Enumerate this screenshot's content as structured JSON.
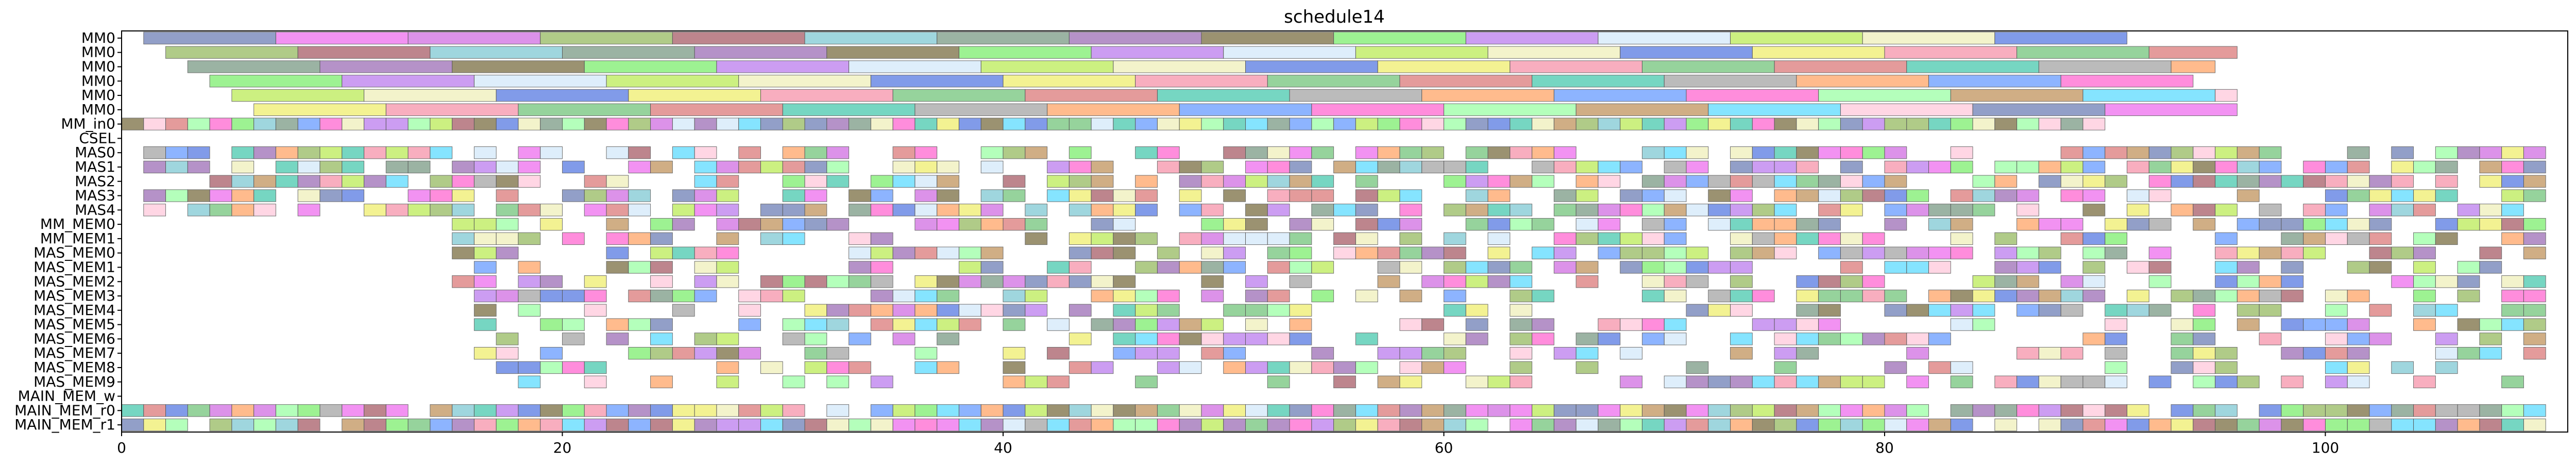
{
  "chart_data": {
    "type": "gantt",
    "title": "schedule14",
    "xlabel": "",
    "ylabel": "",
    "xlim": [
      0,
      111
    ],
    "x_ticks": [
      0,
      20,
      40,
      60,
      80,
      100
    ],
    "grid": false,
    "rows": [
      "MM0",
      "MM0",
      "MM0",
      "MM0",
      "MM0",
      "MM0",
      "MM_in0",
      "CSEL",
      "MAS0",
      "MAS1",
      "MAS2",
      "MAS3",
      "MAS4",
      "MM_MEM0",
      "MM_MEM1",
      "MAS_MEM0",
      "MAS_MEM1",
      "MAS_MEM2",
      "MAS_MEM3",
      "MAS_MEM4",
      "MAS_MEM5",
      "MAS_MEM6",
      "MAS_MEM7",
      "MAS_MEM8",
      "MAS_MEM9",
      "MAIN_MEM_w",
      "MAIN_MEM_r0",
      "MAIN_MEM_r1"
    ],
    "tasks": [
      {
        "row": 0,
        "segments": [
          [
            1,
            6
          ],
          [
            7,
            6
          ],
          [
            13,
            6
          ],
          [
            19,
            6
          ],
          [
            25,
            6
          ],
          [
            31,
            6
          ],
          [
            37,
            6
          ],
          [
            43,
            6
          ],
          [
            49,
            6
          ],
          [
            55,
            6
          ],
          [
            61,
            6
          ],
          [
            67,
            6
          ],
          [
            73,
            6
          ],
          [
            79,
            6
          ],
          [
            85,
            6
          ]
        ]
      },
      {
        "row": 1,
        "segments": [
          [
            2,
            6
          ],
          [
            8,
            6
          ],
          [
            14,
            6
          ],
          [
            20,
            6
          ],
          [
            26,
            6
          ],
          [
            32,
            6
          ],
          [
            38,
            6
          ],
          [
            44,
            6
          ],
          [
            50,
            6
          ],
          [
            56,
            6
          ],
          [
            62,
            6
          ],
          [
            68,
            6
          ],
          [
            74,
            6
          ],
          [
            80,
            6
          ],
          [
            86,
            6
          ],
          [
            92,
            4
          ]
        ]
      },
      {
        "row": 2,
        "segments": [
          [
            3,
            6
          ],
          [
            9,
            6
          ],
          [
            15,
            6
          ],
          [
            21,
            6
          ],
          [
            27,
            6
          ],
          [
            33,
            6
          ],
          [
            39,
            6
          ],
          [
            45,
            6
          ],
          [
            51,
            6
          ],
          [
            57,
            6
          ],
          [
            63,
            6
          ],
          [
            69,
            6
          ],
          [
            75,
            6
          ],
          [
            81,
            6
          ],
          [
            87,
            6
          ],
          [
            93,
            2
          ]
        ]
      },
      {
        "row": 3,
        "segments": [
          [
            4,
            6
          ],
          [
            10,
            6
          ],
          [
            16,
            6
          ],
          [
            22,
            6
          ],
          [
            28,
            6
          ],
          [
            34,
            6
          ],
          [
            40,
            6
          ],
          [
            46,
            6
          ],
          [
            52,
            6
          ],
          [
            58,
            6
          ],
          [
            64,
            6
          ],
          [
            70,
            6
          ],
          [
            76,
            6
          ],
          [
            82,
            6
          ],
          [
            88,
            6
          ]
        ]
      },
      {
        "row": 4,
        "segments": [
          [
            5,
            6
          ],
          [
            11,
            6
          ],
          [
            17,
            6
          ],
          [
            23,
            6
          ],
          [
            29,
            6
          ],
          [
            35,
            6
          ],
          [
            41,
            6
          ],
          [
            47,
            6
          ],
          [
            53,
            6
          ],
          [
            59,
            6
          ],
          [
            65,
            6
          ],
          [
            71,
            6
          ],
          [
            77,
            6
          ],
          [
            83,
            6
          ],
          [
            89,
            6
          ],
          [
            95,
            1
          ]
        ]
      },
      {
        "row": 5,
        "segments": [
          [
            6,
            6
          ],
          [
            12,
            6
          ],
          [
            18,
            6
          ],
          [
            24,
            6
          ],
          [
            30,
            6
          ],
          [
            36,
            6
          ],
          [
            42,
            6
          ],
          [
            48,
            6
          ],
          [
            54,
            6
          ],
          [
            60,
            6
          ],
          [
            66,
            6
          ],
          [
            72,
            6
          ],
          [
            78,
            6
          ],
          [
            84,
            6
          ],
          [
            90,
            6
          ]
        ]
      }
    ],
    "dense_rows": [
      {
        "row": 6,
        "start": 0,
        "end": 90,
        "density": 1.0
      },
      {
        "row": 7,
        "start": 0,
        "end": 0,
        "density": 0
      },
      {
        "row": 8,
        "start": 1,
        "end": 110,
        "density": 0.72
      },
      {
        "row": 9,
        "start": 1,
        "end": 110,
        "density": 0.75
      },
      {
        "row": 10,
        "start": 1,
        "end": 110,
        "density": 0.72
      },
      {
        "row": 11,
        "start": 1,
        "end": 110,
        "density": 0.7
      },
      {
        "row": 12,
        "start": 1,
        "end": 110,
        "density": 0.7
      },
      {
        "row": 13,
        "start": 15,
        "end": 110,
        "density": 0.68
      },
      {
        "row": 14,
        "start": 15,
        "end": 110,
        "density": 0.68
      },
      {
        "row": 15,
        "start": 15,
        "end": 110,
        "density": 0.66
      },
      {
        "row": 16,
        "start": 15,
        "end": 110,
        "density": 0.64
      },
      {
        "row": 17,
        "start": 15,
        "end": 110,
        "density": 0.62
      },
      {
        "row": 18,
        "start": 16,
        "end": 110,
        "density": 0.6
      },
      {
        "row": 19,
        "start": 16,
        "end": 110,
        "density": 0.58
      },
      {
        "row": 20,
        "start": 16,
        "end": 110,
        "density": 0.56
      },
      {
        "row": 21,
        "start": 16,
        "end": 110,
        "density": 0.54
      },
      {
        "row": 22,
        "start": 16,
        "end": 110,
        "density": 0.52
      },
      {
        "row": 23,
        "start": 17,
        "end": 110,
        "density": 0.5
      },
      {
        "row": 24,
        "start": 17,
        "end": 110,
        "density": 0.5
      },
      {
        "row": 25,
        "start": 90,
        "end": 110,
        "density": 0.15
      },
      {
        "row": 26,
        "start": 0,
        "end": 110,
        "density": 0.95
      },
      {
        "row": 27,
        "start": 0,
        "end": 110,
        "density": 0.95
      }
    ],
    "colors": [
      "#7f8fbf",
      "#f07ff0",
      "#d77fe6",
      "#a3c274",
      "#b2707a",
      "#8fcfd9",
      "#8aa693",
      "#a97fbf",
      "#8a7f59",
      "#8cf07f",
      "#c48cf0",
      "#d9ecfb",
      "#c4ee6c",
      "#f2f2c2",
      "#6c8ae6",
      "#f2f07f",
      "#f7a0b4",
      "#84cc8b",
      "#e08a8a",
      "#5fd0b8",
      "#b0b0b0",
      "#ffb07a",
      "#7aa8ff",
      "#ff7ad6",
      "#a8ffb0",
      "#c8a070",
      "#70e0ff",
      "#ffd0e0"
    ]
  }
}
